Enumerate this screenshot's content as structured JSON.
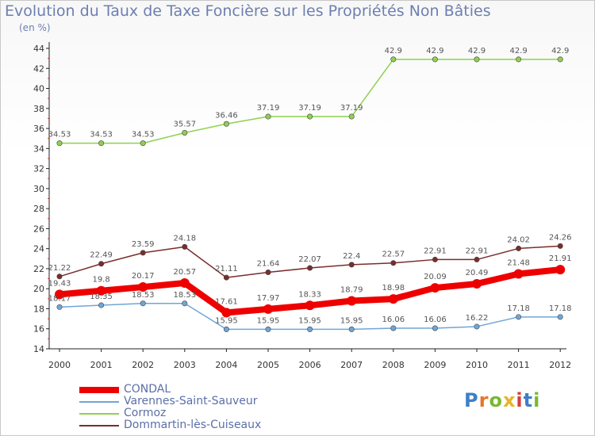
{
  "chart_data": {
    "type": "line",
    "title": "Evolution du Taux de Taxe Foncière sur les Propriétés Non Bâties",
    "subtitle": "(en %)",
    "x": [
      "2000",
      "2001",
      "2002",
      "2003",
      "2004",
      "2005",
      "2006",
      "2007",
      "2008",
      "2009",
      "2010",
      "2011",
      "2012"
    ],
    "ylim": [
      14,
      44
    ],
    "yticks": [
      14,
      16,
      18,
      20,
      22,
      24,
      26,
      28,
      30,
      32,
      34,
      36,
      38,
      40,
      42,
      44
    ],
    "grid": false,
    "legend_position": "bottom-left",
    "series": [
      {
        "name": "Cormoz",
        "color": "#8fd14f",
        "values": [
          34.53,
          34.53,
          34.53,
          35.57,
          36.46,
          37.19,
          37.19,
          37.19,
          42.9,
          42.9,
          42.9,
          42.9,
          42.9
        ],
        "labels": [
          "34.53",
          "34.53",
          "34.53",
          "35.57",
          "36.46",
          "37.19",
          "37.19",
          "37.19",
          "42.9",
          "42.9",
          "42.9",
          "42.9",
          "42.9"
        ]
      },
      {
        "name": "Dommartin-lès-Cuiseaux",
        "color": "#7a2d2d",
        "values": [
          21.22,
          22.49,
          23.59,
          24.18,
          21.11,
          21.64,
          22.07,
          22.4,
          22.57,
          22.91,
          22.91,
          24.02,
          24.26
        ],
        "labels": [
          "21.22",
          "22.49",
          "23.59",
          "24.18",
          "21.11",
          "21.64",
          "22.07",
          "22.4",
          "22.57",
          "22.91",
          "22.91",
          "24.02",
          "24.26"
        ]
      },
      {
        "name": "CONDAL",
        "color": "#ee0000",
        "values": [
          19.43,
          19.8,
          20.17,
          20.57,
          17.61,
          17.97,
          18.33,
          18.79,
          18.98,
          20.09,
          20.49,
          21.48,
          21.91
        ],
        "labels": [
          "19.43",
          "19.8",
          "20.17",
          "20.57",
          "17.61",
          "17.97",
          "18.33",
          "18.79",
          "18.98",
          "20.09",
          "20.49",
          "21.48",
          "21.91"
        ]
      },
      {
        "name": "Varennes-Saint-Sauveur",
        "color": "#6fa6d8",
        "values": [
          18.17,
          18.35,
          18.53,
          18.53,
          15.95,
          15.95,
          15.95,
          15.95,
          16.06,
          16.06,
          16.22,
          17.18,
          17.18
        ],
        "labels": [
          "18.17",
          "18.35",
          "18.53",
          "18.53",
          "15.95",
          "15.95",
          "15.95",
          "15.95",
          "16.06",
          "16.06",
          "16.22",
          "17.18",
          "17.18"
        ]
      }
    ]
  },
  "legend": {
    "items": [
      {
        "label": "CONDAL",
        "color": "#ee0000"
      },
      {
        "label": "Varennes-Saint-Sauveur",
        "color": "#6fa6d8"
      },
      {
        "label": "Cormoz",
        "color": "#8fd14f"
      },
      {
        "label": "Dommartin-lès-Cuiseaux",
        "color": "#7a2d2d"
      }
    ]
  },
  "logo": {
    "letters": [
      "P",
      "r",
      "o",
      "x",
      "i",
      "t",
      "i"
    ]
  }
}
